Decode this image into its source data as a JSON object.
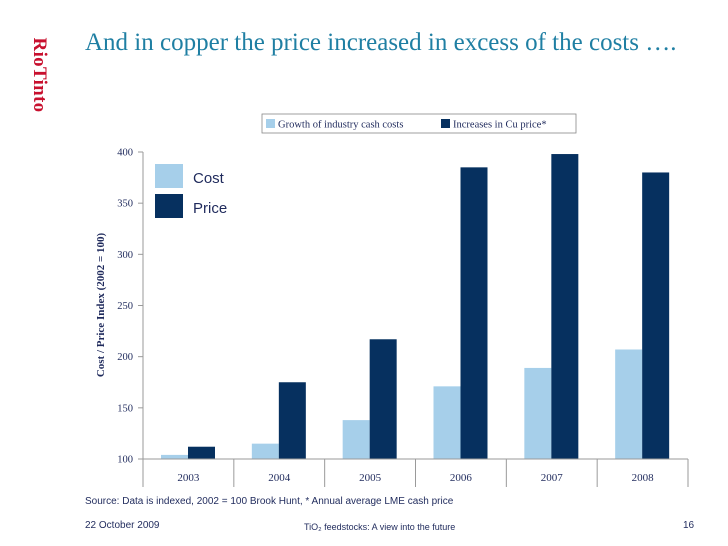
{
  "brand": {
    "name": "RioTinto",
    "color": "#c8102e"
  },
  "slide": {
    "title": "And in copper the price increased in excess of the costs ….",
    "source": "Source: Data is indexed, 2002 = 100  Brook Hunt, * Annual average LME cash price",
    "date": "22 October 2009",
    "footer_text": "TiO₂ feedstocks: A view into the future",
    "page_number": "16"
  },
  "chart_data": {
    "type": "bar",
    "categories": [
      "2003",
      "2004",
      "2005",
      "2006",
      "2007",
      "2008"
    ],
    "series": [
      {
        "name": "Growth of industry cash costs",
        "color": "#a6cfea",
        "values": [
          104,
          115,
          138,
          171,
          189,
          207
        ]
      },
      {
        "name": "Increases in Cu price*",
        "color": "#06305f",
        "values": [
          112,
          175,
          217,
          385,
          398,
          380
        ]
      }
    ],
    "ylabel": "Cost / Price Index (2002 = 100)",
    "ylim": [
      100,
      400
    ],
    "yticks": [
      100,
      150,
      200,
      250,
      300,
      350,
      400
    ],
    "legend_position": "top-right",
    "grid": false,
    "annotations": [
      {
        "label": "Cost",
        "color": "#a6cfea"
      },
      {
        "label": "Price",
        "color": "#06305f"
      }
    ]
  }
}
